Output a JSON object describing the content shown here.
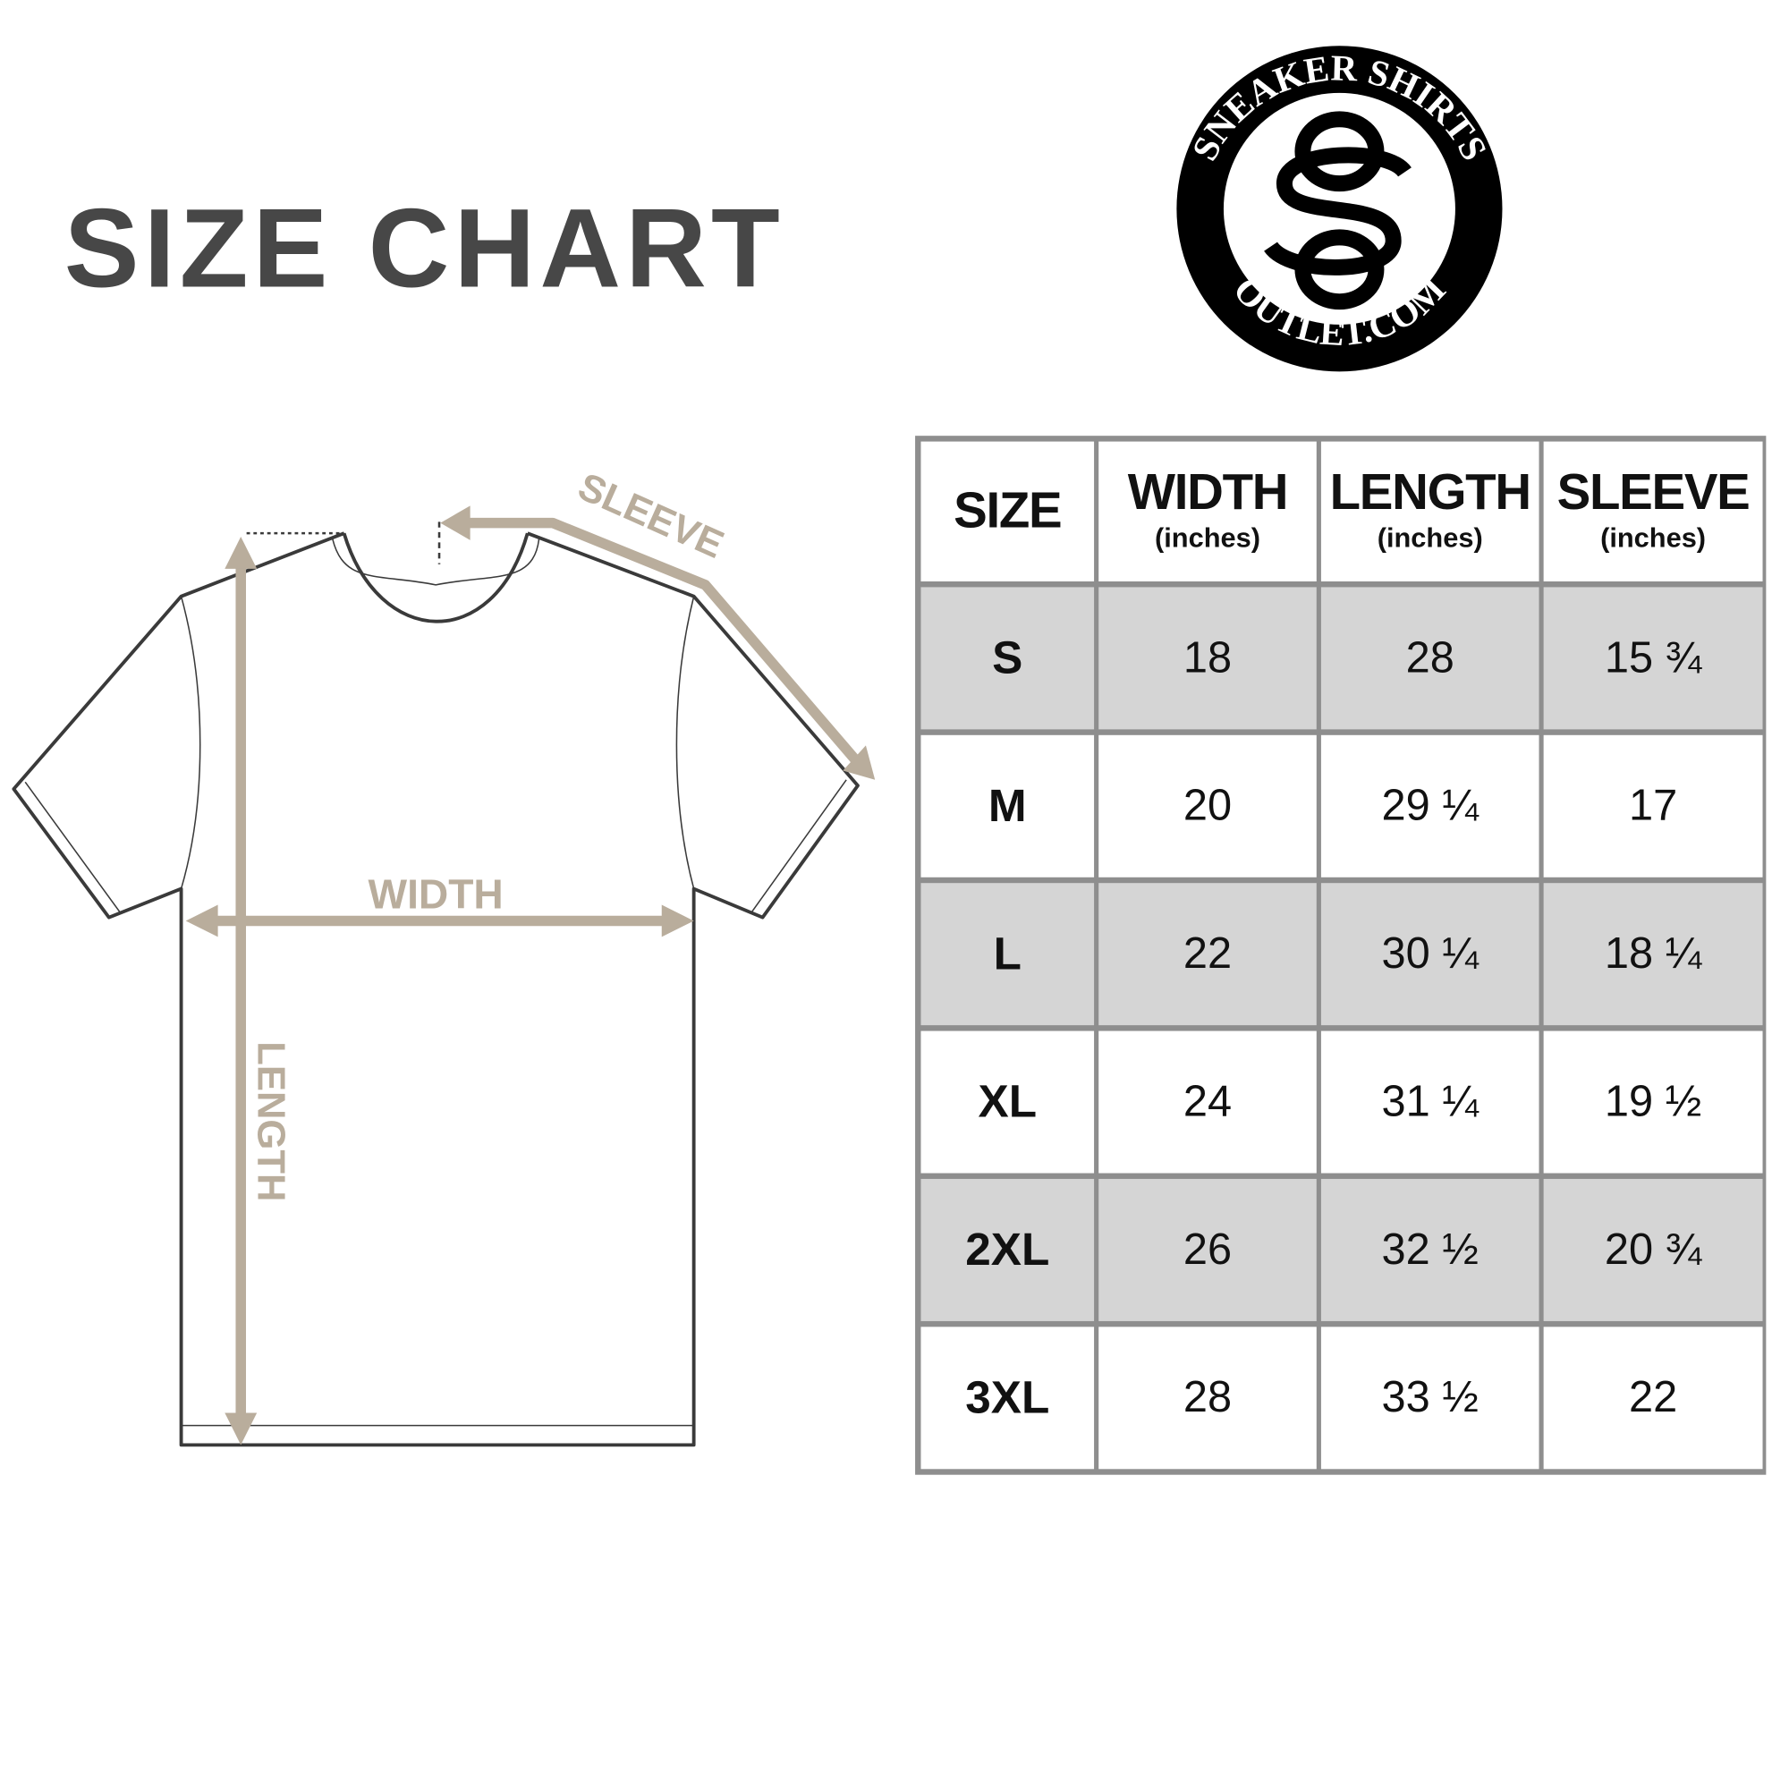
{
  "title": "SIZE CHART",
  "logo": {
    "top_text": "SNEAKER SHIRTS",
    "bottom_text": "OUTLET.COM",
    "monogram": "SO"
  },
  "diagram": {
    "sleeve_label": "SLEEVE",
    "width_label": "WIDTH",
    "length_label": "LENGTH",
    "accent_color": "#b9ad9c"
  },
  "table": {
    "headers": [
      {
        "label": "SIZE",
        "unit": ""
      },
      {
        "label": "WIDTH",
        "unit": "(inches)"
      },
      {
        "label": "LENGTH",
        "unit": "(inches)"
      },
      {
        "label": "SLEEVE",
        "unit": "(inches)"
      }
    ],
    "rows": [
      [
        "S",
        "18",
        "28",
        "15 ¾"
      ],
      [
        "M",
        "20",
        "29 ¼",
        "17"
      ],
      [
        "L",
        "22",
        "30 ¼",
        "18 ¼"
      ],
      [
        "XL",
        "24",
        "31 ¼",
        "19 ½"
      ],
      [
        "2XL",
        "26",
        "32 ½",
        "20 ¾"
      ],
      [
        "3XL",
        "28",
        "33 ½",
        "22"
      ]
    ],
    "stripe_color": "#d5d5d5",
    "border_color": "#8e8e8e"
  }
}
